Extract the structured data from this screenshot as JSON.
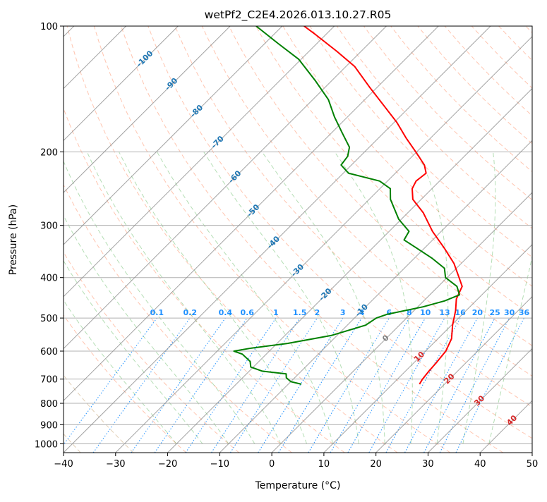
{
  "chart_data": {
    "type": "line",
    "title": "wetPf2_C2E4.2026.013.10.27.R05",
    "xlabel": "Temperature (°C)",
    "ylabel": "Pressure (hPa)",
    "xlim": [
      -40,
      50
    ],
    "ylim": [
      1050,
      100
    ],
    "y_scale": "log",
    "xticks": [
      -40,
      -30,
      -20,
      -10,
      0,
      10,
      20,
      30,
      40,
      50
    ],
    "yticks": [
      1000,
      900,
      800,
      700,
      600,
      500,
      400,
      300,
      200,
      100
    ],
    "grid": true,
    "diagram": "skew-T log-P",
    "series": [
      {
        "color": "#ff0000",
        "points": [
          [
            720,
            15.2
          ],
          [
            700,
            14.8
          ],
          [
            670,
            14.5
          ],
          [
            640,
            14.3
          ],
          [
            600,
            13.9
          ],
          [
            560,
            12.6
          ],
          [
            520,
            10.2
          ],
          [
            480,
            8.0
          ],
          [
            450,
            5.9
          ],
          [
            420,
            4.6
          ],
          [
            400,
            2.3
          ],
          [
            370,
            -1.4
          ],
          [
            340,
            -6.2
          ],
          [
            310,
            -11.7
          ],
          [
            280,
            -17.0
          ],
          [
            260,
            -21.6
          ],
          [
            245,
            -23.8
          ],
          [
            235,
            -24.5
          ],
          [
            225,
            -24.1
          ],
          [
            215,
            -26.0
          ],
          [
            200,
            -30.2
          ],
          [
            185,
            -34.8
          ],
          [
            170,
            -39.5
          ],
          [
            155,
            -45.2
          ],
          [
            140,
            -51.5
          ],
          [
            125,
            -58.3
          ],
          [
            115,
            -64.6
          ],
          [
            105,
            -71.8
          ],
          [
            100,
            -75.8
          ]
        ]
      },
      {
        "color": "#008000",
        "points": [
          [
            720,
            -7.5
          ],
          [
            710,
            -10.0
          ],
          [
            695,
            -11.6
          ],
          [
            680,
            -12.4
          ],
          [
            670,
            -17.5
          ],
          [
            655,
            -20.5
          ],
          [
            635,
            -21.7
          ],
          [
            610,
            -24.6
          ],
          [
            600,
            -26.8
          ],
          [
            590,
            -24.0
          ],
          [
            575,
            -18.0
          ],
          [
            550,
            -11.0
          ],
          [
            520,
            -6.5
          ],
          [
            500,
            -5.8
          ],
          [
            490,
            -4.5
          ],
          [
            470,
            1.0
          ],
          [
            455,
            4.0
          ],
          [
            440,
            5.7
          ],
          [
            420,
            3.6
          ],
          [
            400,
            -0.3
          ],
          [
            380,
            -2.3
          ],
          [
            360,
            -6.5
          ],
          [
            340,
            -11.5
          ],
          [
            325,
            -15.5
          ],
          [
            310,
            -16.2
          ],
          [
            290,
            -20.5
          ],
          [
            260,
            -25.9
          ],
          [
            245,
            -28.0
          ],
          [
            235,
            -31.5
          ],
          [
            225,
            -39.0
          ],
          [
            215,
            -42.0
          ],
          [
            205,
            -42.4
          ],
          [
            195,
            -43.8
          ],
          [
            180,
            -48.0
          ],
          [
            165,
            -52.5
          ],
          [
            150,
            -57.0
          ],
          [
            135,
            -63.2
          ],
          [
            120,
            -70.5
          ],
          [
            110,
            -77.5
          ],
          [
            100,
            -85.0
          ]
        ]
      }
    ],
    "isotherm_labels": [
      "-100",
      "-90",
      "-80",
      "-70",
      "-60",
      "-50",
      "-40",
      "-30",
      "-20",
      "-10",
      "0",
      "10",
      "20",
      "30",
      "40"
    ],
    "mixing_ratio_labels": [
      "0.1",
      "0.2",
      "0.4",
      "0.6",
      "1",
      "1.5",
      "2",
      "3",
      "4",
      "6",
      "8",
      "10",
      "13",
      "16",
      "20",
      "25",
      "30",
      "36"
    ],
    "colors": {
      "temperature": "#ff0000",
      "dewpoint": "#008000",
      "isotherm_label_cold": "#1f77b4",
      "isotherm_label_warm": "#d62728",
      "isotherm_label_zero": "#7f7f7f",
      "mixing_ratio": "#1e90ff",
      "dry_adiabat": "#ff7f50",
      "moist_adiabat": "#2ca02c",
      "grid": "#b0b0b0"
    }
  }
}
